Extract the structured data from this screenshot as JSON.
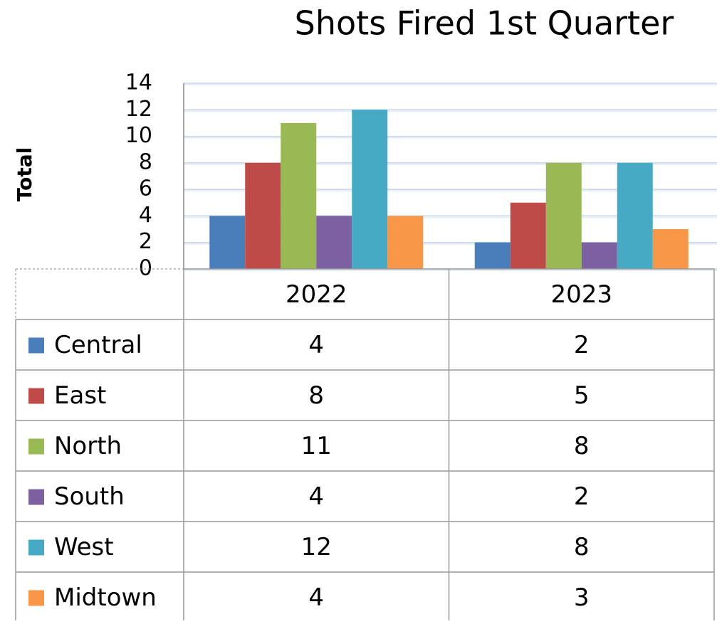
{
  "chart_data": {
    "type": "bar",
    "title": "Shots Fired 1st Quarter",
    "y_label": "Total",
    "categories": [
      "2022",
      "2023"
    ],
    "series": [
      {
        "name": "Central",
        "color": "#4a7ebb",
        "values": [
          4,
          2
        ]
      },
      {
        "name": "East",
        "color": "#be4b48",
        "values": [
          8,
          5
        ]
      },
      {
        "name": "North",
        "color": "#98b954",
        "values": [
          11,
          8
        ]
      },
      {
        "name": "South",
        "color": "#7d60a0",
        "values": [
          4,
          2
        ]
      },
      {
        "name": "West",
        "color": "#46aac5",
        "values": [
          12,
          8
        ]
      },
      {
        "name": "Midtown",
        "color": "#f79646",
        "values": [
          4,
          3
        ]
      }
    ],
    "ylim": [
      0,
      14
    ],
    "yticks": [
      0,
      2,
      4,
      6,
      8,
      10,
      12,
      14
    ],
    "grid": true,
    "data_table": true
  }
}
